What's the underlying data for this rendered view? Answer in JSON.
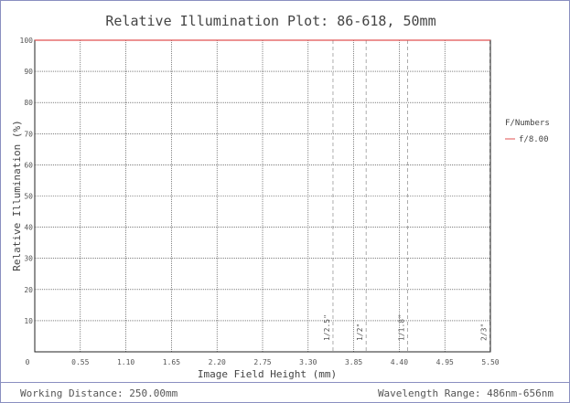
{
  "chart_data": {
    "type": "line",
    "title": "Relative Illumination Plot: 86-618, 50mm",
    "xlabel": "Image Field Height (mm)",
    "ylabel": "Relative Illumination (%)",
    "xlim": [
      0,
      5.5
    ],
    "ylim": [
      0,
      100
    ],
    "x_ticks": [
      "0",
      "0.55",
      "1.10",
      "1.65",
      "2.20",
      "2.75",
      "3.30",
      "3.85",
      "4.40",
      "4.95",
      "5.50"
    ],
    "y_ticks": [
      "0",
      "10",
      "20",
      "30",
      "40",
      "50",
      "60",
      "70",
      "80",
      "90",
      "100"
    ],
    "grid": true,
    "legend": {
      "title": "F/Numbers",
      "placement": "right"
    },
    "series": [
      {
        "name": "f/8.00",
        "color": "#e05050",
        "x": [
          0,
          1.1,
          2.2,
          3.3,
          4.4,
          5.5
        ],
        "y": [
          100,
          100,
          100,
          100,
          100,
          100
        ]
      }
    ],
    "sensor_markers": [
      {
        "label": "1/2.5\"",
        "x": 3.6
      },
      {
        "label": "1/2\"",
        "x": 4.0
      },
      {
        "label": "1/1.8\"",
        "x": 4.5
      },
      {
        "label": "2/3\"",
        "x": 5.5
      }
    ]
  },
  "footer": {
    "working_distance": "Working Distance: 250.00mm",
    "wavelength_range": "Wavelength Range: 486nm-656nm"
  }
}
